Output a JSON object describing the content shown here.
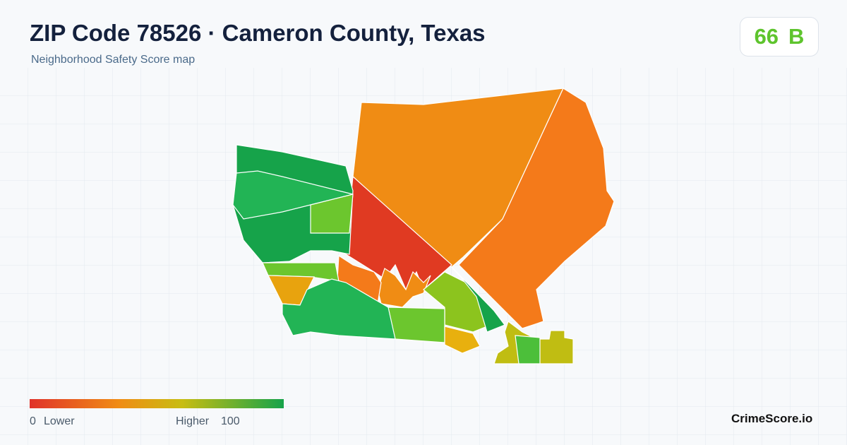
{
  "header": {
    "title": "ZIP Code 78526 · Cameron County, Texas",
    "subtitle": "Neighborhood Safety Score map"
  },
  "score": {
    "value": 66,
    "grade": "B"
  },
  "legend": {
    "min": 0,
    "min_label": "Lower",
    "max_label": "Higher",
    "max": 100
  },
  "brand": "CrimeScore.io"
}
